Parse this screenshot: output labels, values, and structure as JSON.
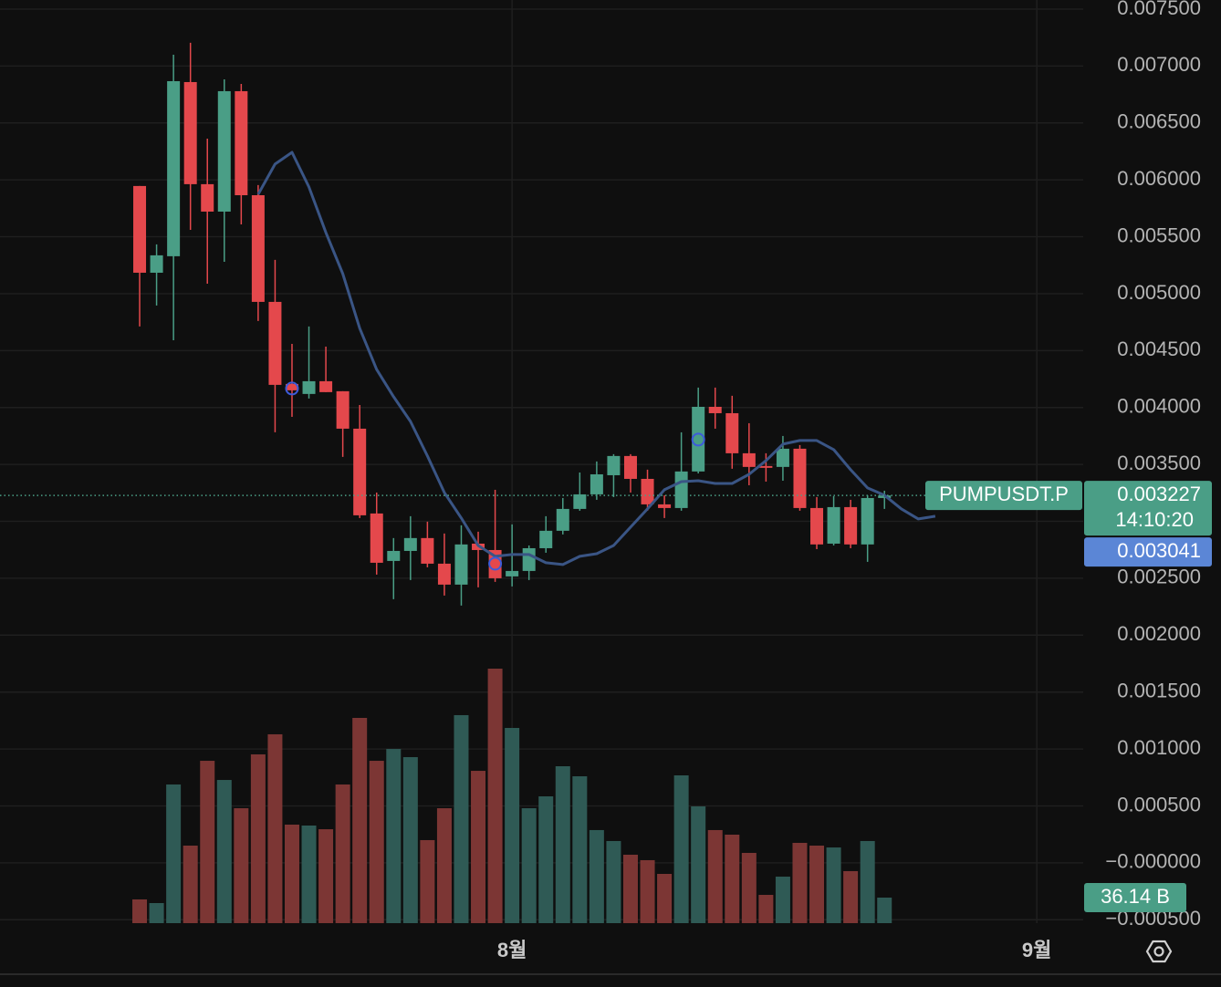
{
  "chart_data": {
    "type": "candlestick",
    "x": [
      0,
      1,
      2,
      3,
      4,
      5,
      6,
      7,
      8,
      9,
      10,
      11,
      12,
      13,
      14,
      15,
      16,
      17,
      18,
      19,
      20,
      21,
      22,
      23,
      24,
      25,
      26,
      27,
      28,
      29,
      30,
      31,
      32,
      33,
      34,
      35,
      36,
      37,
      38,
      39,
      40,
      41,
      42,
      43,
      44
    ],
    "open": [
      0.005946,
      0.005184,
      0.005329,
      0.006859,
      0.005962,
      0.005721,
      0.006779,
      0.005865,
      0.004928,
      0.004207,
      0.004119,
      0.004231,
      0.004143,
      0.003814,
      0.003069,
      0.002652,
      0.00274,
      0.002853,
      0.002628,
      0.002444,
      0.002804,
      0.002748,
      0.002516,
      0.002564,
      0.002764,
      0.002917,
      0.003109,
      0.003237,
      0.003405,
      0.003574,
      0.003373,
      0.003149,
      0.003117,
      0.003438,
      0.004006,
      0.00395,
      0.003598,
      0.003486,
      0.003478,
      0.003638,
      0.003117,
      0.002804,
      0.003125,
      0.002797,
      0.003205
    ],
    "high": [
      0.005946,
      0.005433,
      0.007099,
      0.007204,
      0.006362,
      0.006883,
      0.006843,
      0.005954,
      0.005297,
      0.004559,
      0.004712,
      0.004535,
      0.004143,
      0.004022,
      0.003253,
      0.002853,
      0.003045,
      0.002997,
      0.002893,
      0.002965,
      0.002909,
      0.003277,
      0.002973,
      0.002788,
      0.003045,
      0.003205,
      0.003429,
      0.003526,
      0.00359,
      0.00359,
      0.003454,
      0.003229,
      0.003782,
      0.004175,
      0.004175,
      0.004103,
      0.003862,
      0.003598,
      0.00375,
      0.00367,
      0.003213,
      0.003221,
      0.003189,
      0.003229,
      0.003269
    ],
    "low": [
      0.004712,
      0.004896,
      0.004591,
      0.005561,
      0.005088,
      0.00528,
      0.005609,
      0.00476,
      0.003782,
      0.003918,
      0.004079,
      0.004135,
      0.003566,
      0.003029,
      0.002532,
      0.002316,
      0.002484,
      0.002596,
      0.002348,
      0.00226,
      0.00242,
      0.002468,
      0.002428,
      0.002484,
      0.002724,
      0.002885,
      0.003093,
      0.003189,
      0.003213,
      0.003253,
      0.003093,
      0.003029,
      0.003093,
      0.003421,
      0.003814,
      0.003462,
      0.003317,
      0.003349,
      0.003357,
      0.003093,
      0.002756,
      0.002788,
      0.002764,
      0.002644,
      0.003109
    ],
    "close": [
      0.005184,
      0.005337,
      0.006867,
      0.005962,
      0.005721,
      0.006779,
      0.005865,
      0.004928,
      0.004199,
      0.004151,
      0.004231,
      0.004135,
      0.003814,
      0.003053,
      0.002636,
      0.00274,
      0.002853,
      0.002628,
      0.002444,
      0.002797,
      0.002748,
      0.0025,
      0.002564,
      0.002764,
      0.002917,
      0.003109,
      0.003237,
      0.003413,
      0.003574,
      0.003373,
      0.003149,
      0.003117,
      0.003438,
      0.004006,
      0.00395,
      0.003598,
      0.003478,
      0.00347,
      0.003638,
      0.003117,
      0.002797,
      0.003125,
      0.002797,
      0.003205,
      0.003227
    ],
    "up_color": "#4a9e86",
    "down_color": "#e4484c",
    "volume": {
      "values": [
        33.6,
        28.4,
        196.2,
        109.7,
        229.7,
        202.6,
        162.6,
        238.8,
        267.2,
        139.4,
        138.1,
        132.9,
        196.2,
        290.4,
        229.7,
        246.5,
        234.9,
        117.5,
        162.6,
        294.3,
        215.5,
        360.1,
        276.2,
        162.6,
        179.4,
        222.0,
        207.8,
        131.7,
        116.2,
        96.8,
        89.1,
        69.7,
        209.1,
        165.2,
        131.7,
        125.2,
        99.4,
        40.0,
        65.8,
        113.6,
        109.7,
        107.1,
        73.6,
        116.2,
        36.14
      ],
      "up_color": "#2f5a55",
      "down_color": "#7c3634",
      "last": {
        "value": 36.14,
        "label": "36.14 B"
      }
    },
    "ma": {
      "x": [
        7,
        8,
        9,
        10,
        11,
        12,
        13,
        14,
        15,
        16,
        17,
        18,
        19,
        20,
        21,
        22,
        23,
        24,
        25,
        26,
        27,
        28,
        29,
        30,
        31,
        32,
        33,
        34,
        35,
        36,
        37,
        38,
        39,
        40,
        41,
        42,
        43,
        44,
        45,
        46,
        47
      ],
      "values": [
        0.005873,
        0.006138,
        0.006242,
        0.005938,
        0.005537,
        0.005176,
        0.004696,
        0.004335,
        0.004095,
        0.003878,
        0.003574,
        0.003253,
        0.003029,
        0.002788,
        0.002692,
        0.002708,
        0.002708,
        0.002636,
        0.00262,
        0.002692,
        0.002716,
        0.002788,
        0.002949,
        0.003109,
        0.003277,
        0.003349,
        0.003357,
        0.003333,
        0.003333,
        0.003413,
        0.003534,
        0.003678,
        0.00371,
        0.00371,
        0.00363,
        0.003454,
        0.003293,
        0.003229,
        0.003109,
        0.003021,
        0.003045
      ],
      "color": "#3a5585"
    },
    "markers": {
      "x": [
        9,
        21,
        33
      ],
      "values": [
        0.004167,
        0.002628,
        0.003718
      ],
      "color": "#3d5bd9"
    },
    "symbol": "PUMPUSDT.P",
    "last_price": 0.003227,
    "countdown": "14:10:20",
    "marker_price": 0.003041,
    "marker_price_color": "#5b86d6",
    "xlim": [
      -8.25,
      55.74
    ],
    "xticks": [
      {
        "value": 22,
        "label": "8월"
      },
      {
        "value": 53,
        "label": "9월"
      }
    ],
    "ylim": [
      -0.00053,
      0.00758
    ],
    "yticks": [
      {
        "value": 0.0075,
        "label": "0.007500"
      },
      {
        "value": 0.007,
        "label": "0.007000"
      },
      {
        "value": 0.0065,
        "label": "0.006500"
      },
      {
        "value": 0.006,
        "label": "0.006000"
      },
      {
        "value": 0.0055,
        "label": "0.005500"
      },
      {
        "value": 0.005,
        "label": "0.005000"
      },
      {
        "value": 0.0045,
        "label": "0.004500"
      },
      {
        "value": 0.004,
        "label": "0.004000"
      },
      {
        "value": 0.0035,
        "label": "0.003500"
      },
      {
        "value": 0.003,
        "label": "0.003000"
      },
      {
        "value": 0.0025,
        "label": "0.002500"
      },
      {
        "value": 0.002,
        "label": "0.002000"
      },
      {
        "value": 0.0015,
        "label": "0.001500"
      },
      {
        "value": 0.001,
        "label": "0.001000"
      },
      {
        "value": 0.0005,
        "label": "0.000500"
      },
      {
        "value": 0,
        "label": "−0.000000"
      },
      {
        "value": -0.0005,
        "label": "−0.000500"
      }
    ],
    "grid": true
  }
}
